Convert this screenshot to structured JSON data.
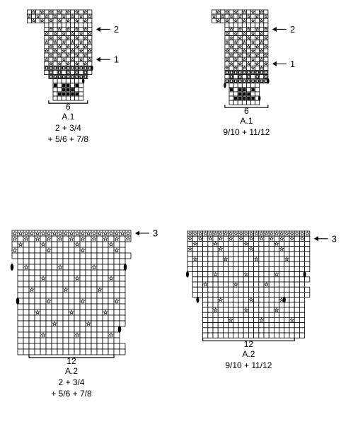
{
  "charts": [
    {
      "id": "a1-small",
      "title": "A.1",
      "size_lines": [
        "2 + 3/4",
        "+ 5/6 + 7/8"
      ],
      "repeat_count": "6",
      "arrows": [
        {
          "label": "2",
          "row": 4
        },
        {
          "label": "1",
          "row": 11
        }
      ],
      "rows": [
        "    .S.S.S.S.S.S.S.",
        "    S.S.S.S.S.S.S.S",
        "    .S.S.S.S.S.S.S.",
        "        ...........",
        "        .S.S.S.S.S.",
        "        S.S.S.S.S.S",
        "        .S.S.S.S.S.",
        "        S.S.S.S.S.S",
        "        .S.S.S.S.S.",
        "        S.S.S.S.S.S",
        "        .S.S.S.S.S.",
        "        S.S.S.S.S.S",
        "        .S.S.S.S.S.",
        "        OOOOOOOOOOO",
        "        .O.O.O.O.O.",
        "         OOOOOOOOO ",
        "          .......  ",
        "          X.XX.X.  ",
        "          ..XXX..  ",
        "          .XXXXX.  ",
        "          .......  "
      ]
    },
    {
      "id": "a1-large",
      "title": "A.1",
      "size_lines": [
        "9/10 + 11/12"
      ],
      "repeat_count": "6",
      "arrows": [
        {
          "label": "2",
          "row": 4
        },
        {
          "label": "1",
          "row": 12
        }
      ],
      "rows": [
        "      .S.S.S.S.S.S.",
        "      S.S.S.S.S.S.S",
        "      .S.S.S.S.S.S.",
        "         ..........",
        "         .S.S.S.S.S",
        "         S.S.S.S.S.",
        "         .S.S.S.S.S",
        "         S.S.S.S.S.",
        "         .S.S.S.S.S",
        "         S.S.S.S.S.",
        "         .S.S.S.S.S",
        "         S.S.S.S.S.",
        "         .S.S.S.S.S",
        "         S.S.S.S.S.",
        "         OOOOOOOOOO",
        "         .O.O.O.O.O",
        "         OOOOOOOOOO",
        "          .......  ",
        "          X.XX.X.  ",
        "          ..XXX..  ",
        "          .XXXXX.  ",
        "          .......  "
      ]
    },
    {
      "id": "a2-small",
      "title": "A.2",
      "size_lines": [
        "2 + 3/4",
        "+ 5/6 + 7/8"
      ],
      "repeat_count": "12",
      "arrows": [
        {
          "label": "3",
          "row": 0
        }
      ],
      "rows": [
        "SSSSSSSSSSSSSSSSSSSSS",
        "S.S.S.S.S.S.S.S.S.S.S",
        ".S...S.....S.....S..",
        "S.....S.....S.....S.",
        ".....................",
        " ...................",
        " .S.....S.....S.....",
        " ...................",
        " ....S.....S.....S..",
        " ...................",
        " ..S.....S.....S....",
        " ...................",
        " .....S.....S.....S.",
        " ...................",
        " ...S.....S.....S...",
        " ...................",
        " ......S.....S......",
        " ..................",
        " ....S.....S.....S.",
        " ..................",
        " ...................",
        " ..................."
      ]
    },
    {
      "id": "a2-large",
      "title": "A.2",
      "size_lines": [
        "9/10 + 11/12"
      ],
      "repeat_count": "12",
      "arrows": [
        {
          "label": "3",
          "row": 1
        }
      ],
      "rows": [
        "SSSSSSSSSSSSSSSSSSSSSSSS",
        "S.S.S.S.S.S.S.S.S.S.S.S.",
        ".S...S.....S.....S......",
        "S.....S.....S.....S.....",
        "........................",
        ".S.....S.....S.....S....",
        "........................",
        "........................",
        " ....S.....S.....S.....",
        " .......................",
        " ..S.....S.....S.......",
        " .......................",
        " .......................",
        "   ...S.....S.....S....",
        "   ....................",
        "   ..S.....S.....S.....",
        "   ....................",
        "   .....S.....S.....S..",
        "   ....................",
        "   ....................",
        "   ...................."
      ]
    }
  ]
}
